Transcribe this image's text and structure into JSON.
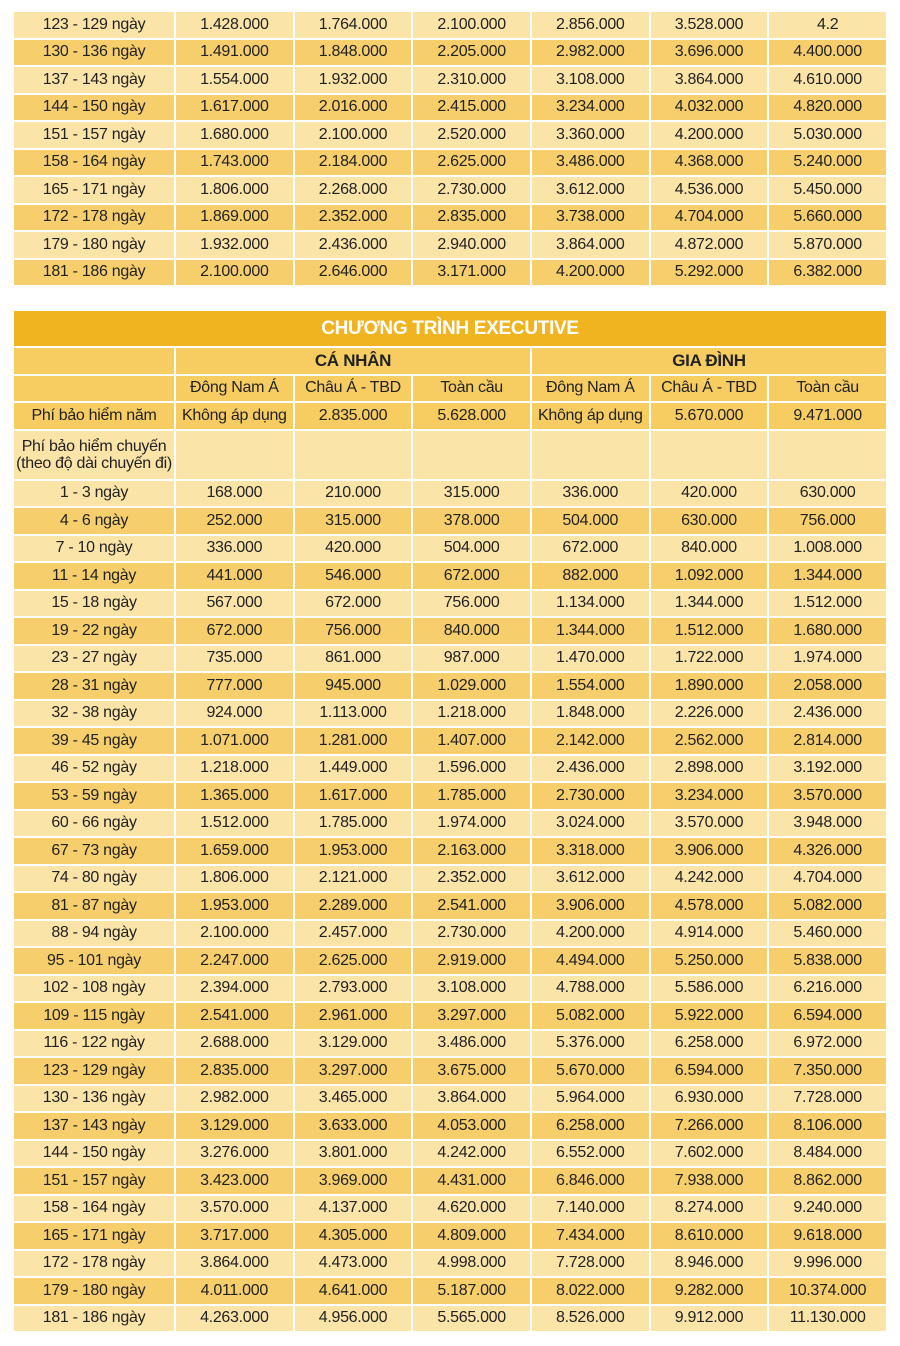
{
  "colors": {
    "title_bg": "#efb41f",
    "header_bg": "#f7cd62",
    "row_light": "#fbe4a8",
    "row_dark": "#f6cf6c"
  },
  "top_table": {
    "rows": [
      [
        "123 - 129 ngày",
        "1.428.000",
        "1.764.000",
        "2.100.000",
        "2.856.000",
        "3.528.000",
        "4.2"
      ],
      [
        "130 - 136 ngày",
        "1.491.000",
        "1.848.000",
        "2.205.000",
        "2.982.000",
        "3.696.000",
        "4.400.000"
      ],
      [
        "137 - 143 ngày",
        "1.554.000",
        "1.932.000",
        "2.310.000",
        "3.108.000",
        "3.864.000",
        "4.610.000"
      ],
      [
        "144 - 150 ngày",
        "1.617.000",
        "2.016.000",
        "2.415.000",
        "3.234.000",
        "4.032.000",
        "4.820.000"
      ],
      [
        "151 - 157 ngày",
        "1.680.000",
        "2.100.000",
        "2.520.000",
        "3.360.000",
        "4.200.000",
        "5.030.000"
      ],
      [
        "158 - 164 ngày",
        "1.743.000",
        "2.184.000",
        "2.625.000",
        "3.486.000",
        "4.368.000",
        "5.240.000"
      ],
      [
        "165 - 171 ngày",
        "1.806.000",
        "2.268.000",
        "2.730.000",
        "3.612.000",
        "4.536.000",
        "5.450.000"
      ],
      [
        "172 - 178 ngày",
        "1.869.000",
        "2.352.000",
        "2.835.000",
        "3.738.000",
        "4.704.000",
        "5.660.000"
      ],
      [
        "179 - 180 ngày",
        "1.932.000",
        "2.436.000",
        "2.940.000",
        "3.864.000",
        "4.872.000",
        "5.870.000"
      ],
      [
        "181 - 186 ngày",
        "2.100.000",
        "2.646.000",
        "3.171.000",
        "4.200.000",
        "5.292.000",
        "6.382.000"
      ]
    ]
  },
  "executive": {
    "title": "CHƯƠNG TRÌNH EXECUTIVE",
    "groups": [
      "CÁ NHÂN",
      "GIA ĐÌNH"
    ],
    "regions": [
      "Đông Nam Á",
      "Châu Á - TBD",
      "Toàn cầu",
      "Đông Nam Á",
      "Châu Á - TBD",
      "Toàn cầu"
    ],
    "annual_fee": [
      "Phí bảo hiểm năm",
      "Không áp dụng",
      "2.835.000",
      "5.628.000",
      "Không áp dụng",
      "5.670.000",
      "9.471.000"
    ],
    "trip_fee_label": "Phí bảo hiểm chuyến (theo độ dài chuyến đi)",
    "rows": [
      [
        "1 - 3 ngày",
        "168.000",
        "210.000",
        "315.000",
        "336.000",
        "420.000",
        "630.000"
      ],
      [
        "4 - 6 ngày",
        "252.000",
        "315.000",
        "378.000",
        "504.000",
        "630.000",
        "756.000"
      ],
      [
        "7 - 10 ngày",
        "336.000",
        "420.000",
        "504.000",
        "672.000",
        "840.000",
        "1.008.000"
      ],
      [
        "11 - 14 ngày",
        "441.000",
        "546.000",
        "672.000",
        "882.000",
        "1.092.000",
        "1.344.000"
      ],
      [
        "15 - 18 ngày",
        "567.000",
        "672.000",
        "756.000",
        "1.134.000",
        "1.344.000",
        "1.512.000"
      ],
      [
        "19 - 22 ngày",
        "672.000",
        "756.000",
        "840.000",
        "1.344.000",
        "1.512.000",
        "1.680.000"
      ],
      [
        "23 - 27 ngày",
        "735.000",
        "861.000",
        "987.000",
        "1.470.000",
        "1.722.000",
        "1.974.000"
      ],
      [
        "28 - 31 ngày",
        "777.000",
        "945.000",
        "1.029.000",
        "1.554.000",
        "1.890.000",
        "2.058.000"
      ],
      [
        "32 - 38 ngày",
        "924.000",
        "1.113.000",
        "1.218.000",
        "1.848.000",
        "2.226.000",
        "2.436.000"
      ],
      [
        "39 - 45 ngày",
        "1.071.000",
        "1.281.000",
        "1.407.000",
        "2.142.000",
        "2.562.000",
        "2.814.000"
      ],
      [
        "46 - 52 ngày",
        "1.218.000",
        "1.449.000",
        "1.596.000",
        "2.436.000",
        "2.898.000",
        "3.192.000"
      ],
      [
        "53 - 59 ngày",
        "1.365.000",
        "1.617.000",
        "1.785.000",
        "2.730.000",
        "3.234.000",
        "3.570.000"
      ],
      [
        "60 - 66 ngày",
        "1.512.000",
        "1.785.000",
        "1.974.000",
        "3.024.000",
        "3.570.000",
        "3.948.000"
      ],
      [
        "67 - 73 ngày",
        "1.659.000",
        "1.953.000",
        "2.163.000",
        "3.318.000",
        "3.906.000",
        "4.326.000"
      ],
      [
        "74 - 80 ngày",
        "1.806.000",
        "2.121.000",
        "2.352.000",
        "3.612.000",
        "4.242.000",
        "4.704.000"
      ],
      [
        "81 - 87 ngày",
        "1.953.000",
        "2.289.000",
        "2.541.000",
        "3.906.000",
        "4.578.000",
        "5.082.000"
      ],
      [
        "88 - 94 ngày",
        "2.100.000",
        "2.457.000",
        "2.730.000",
        "4.200.000",
        "4.914.000",
        "5.460.000"
      ],
      [
        "95 - 101 ngày",
        "2.247.000",
        "2.625.000",
        "2.919.000",
        "4.494.000",
        "5.250.000",
        "5.838.000"
      ],
      [
        "102 - 108 ngày",
        "2.394.000",
        "2.793.000",
        "3.108.000",
        "4.788.000",
        "5.586.000",
        "6.216.000"
      ],
      [
        "109 - 115 ngày",
        "2.541.000",
        "2.961.000",
        "3.297.000",
        "5.082.000",
        "5.922.000",
        "6.594.000"
      ],
      [
        "116 - 122 ngày",
        "2.688.000",
        "3.129.000",
        "3.486.000",
        "5.376.000",
        "6.258.000",
        "6.972.000"
      ],
      [
        "123 - 129 ngày",
        "2.835.000",
        "3.297.000",
        "3.675.000",
        "5.670.000",
        "6.594.000",
        "7.350.000"
      ],
      [
        "130 - 136 ngày",
        "2.982.000",
        "3.465.000",
        "3.864.000",
        "5.964.000",
        "6.930.000",
        "7.728.000"
      ],
      [
        "137 - 143 ngày",
        "3.129.000",
        "3.633.000",
        "4.053.000",
        "6.258.000",
        "7.266.000",
        "8.106.000"
      ],
      [
        "144 - 150 ngày",
        "3.276.000",
        "3.801.000",
        "4.242.000",
        "6.552.000",
        "7.602.000",
        "8.484.000"
      ],
      [
        "151 - 157 ngày",
        "3.423.000",
        "3.969.000",
        "4.431.000",
        "6.846.000",
        "7.938.000",
        "8.862.000"
      ],
      [
        "158 - 164 ngày",
        "3.570.000",
        "4.137.000",
        "4.620.000",
        "7.140.000",
        "8.274.000",
        "9.240.000"
      ],
      [
        "165 - 171 ngày",
        "3.717.000",
        "4.305.000",
        "4.809.000",
        "7.434.000",
        "8.610.000",
        "9.618.000"
      ],
      [
        "172 - 178 ngày",
        "3.864.000",
        "4.473.000",
        "4.998.000",
        "7.728.000",
        "8.946.000",
        "9.996.000"
      ],
      [
        "179 - 180 ngày",
        "4.011.000",
        "4.641.000",
        "5.187.000",
        "8.022.000",
        "9.282.000",
        "10.374.000"
      ],
      [
        "181 - 186 ngày",
        "4.263.000",
        "4.956.000",
        "5.565.000",
        "8.526.000",
        "9.912.000",
        "11.130.000"
      ]
    ]
  }
}
